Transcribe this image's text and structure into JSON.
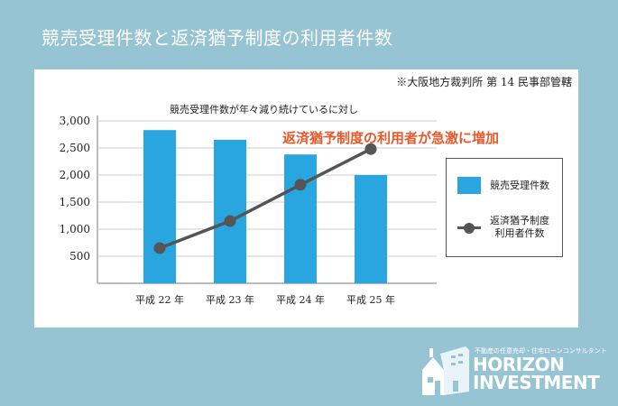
{
  "page": {
    "title": "競売受理件数と返済猶予制度の利用者件数"
  },
  "panel": {
    "source_note": "※大阪地方裁判所 第 14 民事部管轄",
    "chart_title": "競売受理件数が年々減り続けているに対し",
    "annotation": "返済猶予制度の利用者が急激に増加"
  },
  "legend": {
    "bar_label": "競売受理件数",
    "line_label_1": "返済猶予制度",
    "line_label_2": "利用者件数"
  },
  "logo": {
    "tagline": "不動産の任意売却・住宅ローンコンサルタント",
    "name_line1": "HORIZON",
    "name_line2": "INVESTMENT"
  },
  "colors": {
    "background": "#96c4d3",
    "bar": "#29a5e0",
    "line": "#555555",
    "annotation": "#e8582a",
    "grid": "#cccccc"
  },
  "chart_data": {
    "type": "bar+line",
    "title": "競売受理件数が年々減り続けているに対し",
    "categories": [
      "平成 22 年",
      "平成 23 年",
      "平成 24 年",
      "平成 25 年"
    ],
    "series": [
      {
        "name": "競売受理件数",
        "type": "bar",
        "values": [
          2830,
          2650,
          2380,
          2000
        ]
      },
      {
        "name": "返済猶予制度利用者件数",
        "type": "line",
        "values": [
          650,
          1150,
          1820,
          2480
        ]
      }
    ],
    "yticks": [
      "3,000",
      "2,500",
      "2,000",
      "1,500",
      "1,000",
      "500"
    ],
    "ylim": [
      0,
      3000
    ],
    "xlabel": "",
    "ylabel": "",
    "grid": true,
    "legend_position": "right",
    "annotations": [
      "返済猶予制度の利用者が急激に増加",
      "※大阪地方裁判所 第 14 民事部管轄"
    ]
  }
}
